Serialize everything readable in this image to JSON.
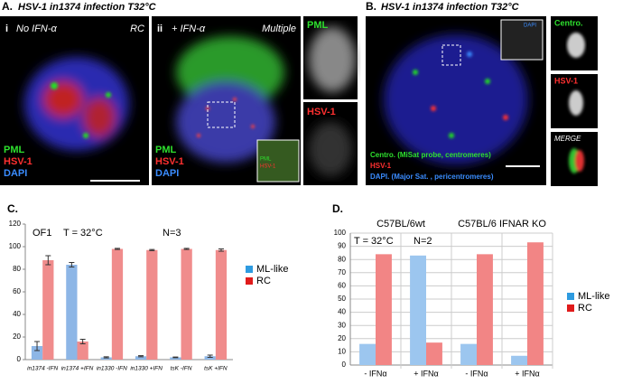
{
  "panels": {
    "A": {
      "label": "A.",
      "title": "HSV-1 in1374 infection T32°C",
      "i": {
        "label": "i",
        "condition": "No IFN-α",
        "phenotype": "RC",
        "stains": [
          "PML",
          "HSV-1",
          "DAPI"
        ]
      },
      "ii": {
        "label": "ii",
        "condition": "+ IFN-α",
        "phenotype": "Multiple",
        "stains": [
          "PML",
          "HSV-1",
          "DAPI"
        ],
        "inset": [
          "PML",
          "HSV-1"
        ]
      },
      "channels": [
        "PML",
        "HSV-1"
      ]
    },
    "B": {
      "label": "B.",
      "title": "HSV-1 in1374 infection T32°C",
      "inset": "DAPI",
      "legend": [
        "Centro. (MiSat probe, centromeres)",
        "HSV-1",
        "DAPI. (Major Sat. , pericentromeres)"
      ],
      "channels": [
        "Centro.",
        "HSV-1",
        "MERGE"
      ]
    }
  },
  "chart_data": [
    {
      "type": "bar",
      "label": "C.",
      "annotations": [
        "OF1",
        "T = 32°C",
        "N=3"
      ],
      "categories": [
        "in1374 -IFN",
        "in1374 +IFN",
        "in1330 -IFN",
        "in1330 +IFN",
        "tsK -IFN",
        "tsK +IFN"
      ],
      "series": [
        {
          "name": "ML-like",
          "color": "#8db6e6",
          "legend_color": "#2e9be0",
          "values": [
            12,
            84,
            2,
            3,
            2,
            3
          ],
          "errors": [
            4,
            2,
            0.5,
            0.5,
            0.3,
            1
          ]
        },
        {
          "name": "RC",
          "color": "#f08c8c",
          "legend_color": "#e01b1b",
          "values": [
            88,
            16,
            98,
            97,
            98,
            97
          ],
          "errors": [
            4,
            2,
            0.5,
            0.5,
            0.5,
            1
          ]
        }
      ],
      "ylim": [
        0,
        120
      ],
      "yticks": [
        0,
        20,
        40,
        60,
        80,
        100,
        120
      ],
      "grid": false,
      "legend": "right"
    },
    {
      "type": "bar",
      "label": "D.",
      "annotations": [
        "T = 32°C",
        "N=2"
      ],
      "group_labels": [
        "C57BL/6wt",
        "C57BL/6 IFNAR KO"
      ],
      "categories": [
        "- IFNα",
        "+ IFNα",
        "- IFNα",
        "+ IFNα"
      ],
      "series": [
        {
          "name": "ML-like",
          "color": "#9cc6ef",
          "legend_color": "#2e9be0",
          "values": [
            16,
            83,
            16,
            7
          ]
        },
        {
          "name": "RC",
          "color": "#f28585",
          "legend_color": "#e01b1b",
          "values": [
            84,
            17,
            84,
            93
          ]
        }
      ],
      "ylim": [
        0,
        100
      ],
      "yticks": [
        0,
        10,
        20,
        30,
        40,
        50,
        60,
        70,
        80,
        90,
        100
      ],
      "grid": true,
      "legend": "right"
    }
  ]
}
